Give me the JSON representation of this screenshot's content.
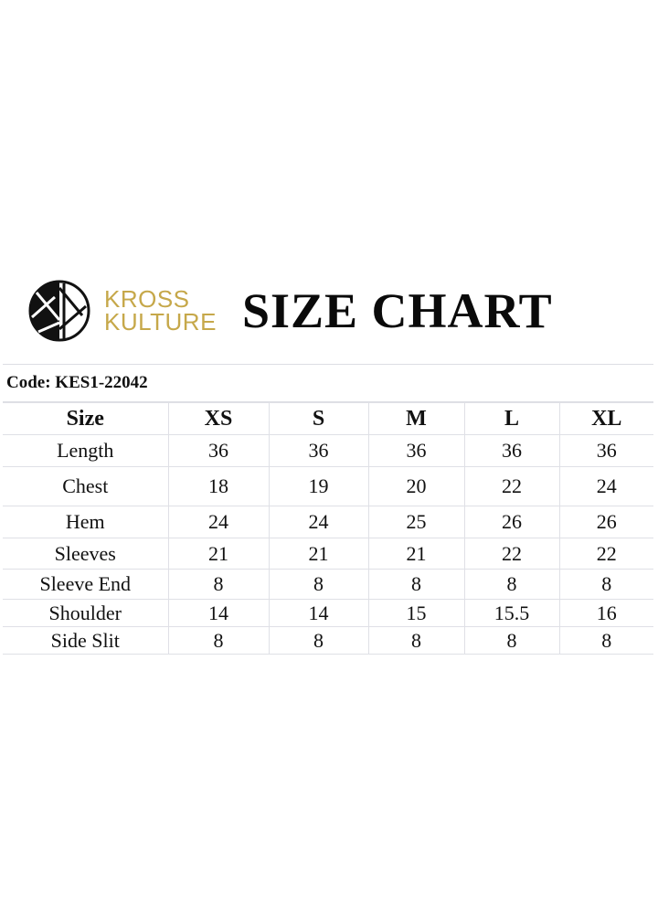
{
  "brand": {
    "line1": "KROSS",
    "line2": "KULTURE",
    "color": "#c6a84a"
  },
  "title": "SIZE CHART",
  "code_label": "Code: KES1-22042",
  "table": {
    "headers": [
      "Size",
      "XS",
      "S",
      "M",
      "L",
      "XL"
    ],
    "rows": [
      [
        "Length",
        "36",
        "36",
        "36",
        "36",
        "36"
      ],
      [
        "Chest",
        "18",
        "19",
        "20",
        "22",
        "24"
      ],
      [
        "Hem",
        "24",
        "24",
        "25",
        "26",
        "26"
      ],
      [
        "Sleeves",
        "21",
        "21",
        "21",
        "22",
        "22"
      ],
      [
        "Sleeve End",
        "8",
        "8",
        "8",
        "8",
        "8"
      ],
      [
        "Shoulder",
        "14",
        "14",
        "15",
        "15.5",
        "16"
      ],
      [
        "Side Slit",
        "8",
        "8",
        "8",
        "8",
        "8"
      ]
    ]
  }
}
